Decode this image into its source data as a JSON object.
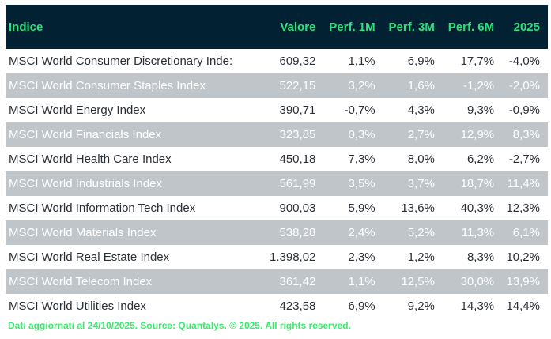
{
  "header": {
    "name": "Indice",
    "value": "Valore",
    "p1m": "Perf. 1M",
    "p3m": "Perf. 3M",
    "p6m": "Perf. 6M",
    "ytd": "2025"
  },
  "rows": [
    [
      "MSCI World Consumer Discretionary Inde:",
      "609,32",
      "1,1%",
      "6,9%",
      "17,7%",
      "-4,0%"
    ],
    [
      "MSCI World Consumer Staples Index",
      "522,15",
      "3,2%",
      "1,6%",
      "-1,2%",
      "-2,0%"
    ],
    [
      "MSCI World Energy Index",
      "390,71",
      "-0,7%",
      "4,3%",
      "9,3%",
      "-0,9%"
    ],
    [
      "MSCI World Financials Index",
      "323,85",
      "0,3%",
      "2,7%",
      "12,9%",
      "8,3%"
    ],
    [
      "MSCI World Health Care Index",
      "450,18",
      "7,3%",
      "8,0%",
      "6,2%",
      "-2,7%"
    ],
    [
      "MSCI World Industrials Index",
      "561,99",
      "3,5%",
      "3,7%",
      "18,7%",
      "11,4%"
    ],
    [
      "MSCI World Information Tech Index",
      "900,03",
      "5,9%",
      "13,6%",
      "40,3%",
      "12,3%"
    ],
    [
      "MSCI World Materials Index",
      "538,28",
      "2,4%",
      "5,2%",
      "11,3%",
      "6,1%"
    ],
    [
      "MSCI World Real Estate Index",
      "1.398,02",
      "2,3%",
      "1,2%",
      "8,3%",
      "10,2%"
    ],
    [
      "MSCI World Telecom Index",
      "361,42",
      "1,1%",
      "12,5%",
      "30,0%",
      "13,9%"
    ],
    [
      "MSCI World Utilities Index",
      "423,58",
      "6,9%",
      "9,2%",
      "14,3%",
      "14,4%"
    ]
  ],
  "footer": "Dati aggiornati al 24/10/2025. Source: Quantalys. © 2025. All rights reserved.",
  "colors": {
    "header_bg": "#022133",
    "header_text": "#2fe07c",
    "alt_row": "#c0c5ca",
    "footer_text": "#3ee86e"
  }
}
